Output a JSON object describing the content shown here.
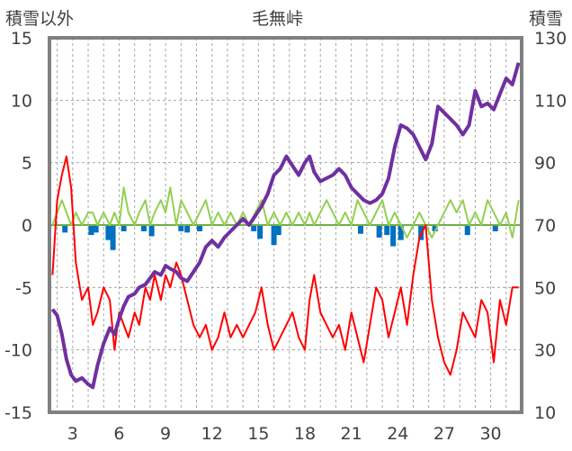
{
  "chart_data": {
    "type": "line",
    "title": "毛無峠",
    "ylabel_left": "積雪以外",
    "ylabel_right": "積雪",
    "left_axis": {
      "ylim": [
        -15,
        15
      ],
      "ticks": [
        15,
        10,
        5,
        0,
        -5,
        -10,
        -15
      ]
    },
    "right_axis": {
      "ylim": [
        10,
        130
      ],
      "ticks": [
        130,
        110,
        90,
        70,
        50,
        30,
        10
      ]
    },
    "x_axis": {
      "xlim": [
        1.5,
        32
      ],
      "ticks": [
        3,
        6,
        9,
        12,
        15,
        18,
        21,
        24,
        27,
        30
      ]
    },
    "grid": true,
    "series": [
      {
        "axis": "right",
        "kind": "line",
        "color": "#7030a0",
        "x": [
          1.7,
          2.0,
          2.3,
          2.6,
          2.9,
          3.2,
          3.6,
          4.0,
          4.3,
          4.6,
          5.0,
          5.4,
          5.7,
          6.0,
          6.3,
          6.6,
          7.0,
          7.3,
          7.7,
          8.0,
          8.3,
          8.7,
          9.0,
          9.3,
          9.7,
          10.0,
          10.4,
          10.8,
          11.2,
          11.6,
          12.0,
          12.4,
          12.8,
          13.2,
          13.6,
          14.0,
          14.4,
          14.8,
          15.2,
          15.6,
          16.0,
          16.4,
          16.8,
          17.2,
          17.6,
          18.0,
          18.3,
          18.6,
          19.0,
          19.4,
          19.8,
          20.2,
          20.6,
          21.0,
          21.4,
          21.8,
          22.2,
          22.6,
          23.0,
          23.4,
          23.8,
          24.2,
          24.6,
          25.0,
          25.4,
          25.8,
          26.2,
          26.6,
          27.0,
          27.4,
          27.8,
          28.2,
          28.6,
          29.0,
          29.4,
          29.8,
          30.2,
          30.6,
          31.0,
          31.4,
          31.8
        ],
        "y": [
          43,
          41,
          35,
          27,
          22,
          20,
          21,
          19,
          18,
          25,
          32,
          37,
          35,
          40,
          44,
          47,
          48,
          50,
          51,
          53,
          55,
          54,
          57,
          56,
          55,
          53,
          52,
          55,
          58,
          63,
          65,
          63,
          66,
          68,
          70,
          72,
          70,
          73,
          76,
          80,
          86,
          88,
          92,
          89,
          86,
          90,
          92,
          87,
          84,
          85,
          86,
          88,
          86,
          82,
          80,
          78,
          77,
          78,
          80,
          85,
          95,
          102,
          101,
          99,
          95,
          91,
          96,
          108,
          106,
          104,
          102,
          99,
          102,
          113,
          108,
          109,
          107,
          112,
          117,
          115,
          122
        ],
        "data_name": "series-snow-depth"
      },
      {
        "axis": "left",
        "kind": "line",
        "color": "#ff0000",
        "x": [
          1.7,
          2.0,
          2.3,
          2.6,
          2.9,
          3.2,
          3.6,
          4.0,
          4.3,
          4.6,
          5.0,
          5.4,
          5.7,
          6.0,
          6.3,
          6.6,
          7.0,
          7.3,
          7.7,
          8.0,
          8.3,
          8.7,
          9.0,
          9.3,
          9.7,
          10.0,
          10.4,
          10.8,
          11.2,
          11.6,
          12.0,
          12.4,
          12.8,
          13.2,
          13.6,
          14.0,
          14.4,
          14.8,
          15.2,
          15.6,
          16.0,
          16.4,
          16.8,
          17.2,
          17.6,
          18.0,
          18.3,
          18.6,
          19.0,
          19.4,
          19.8,
          20.2,
          20.6,
          21.0,
          21.4,
          21.8,
          22.2,
          22.6,
          23.0,
          23.4,
          23.8,
          24.2,
          24.6,
          25.0,
          25.4,
          25.8,
          26.2,
          26.6,
          27.0,
          27.4,
          27.8,
          28.2,
          28.6,
          29.0,
          29.4,
          29.8,
          30.2,
          30.6,
          31.0,
          31.4,
          31.8
        ],
        "y": [
          -4,
          2,
          4,
          5.5,
          3,
          -3,
          -6,
          -5,
          -8,
          -7,
          -5,
          -6,
          -10,
          -7,
          -8,
          -9,
          -7,
          -8,
          -5,
          -6,
          -4,
          -6,
          -4,
          -5,
          -3,
          -4,
          -6,
          -8,
          -9,
          -8,
          -10,
          -9,
          -7,
          -9,
          -8,
          -9,
          -8,
          -7,
          -5,
          -8,
          -10,
          -9,
          -8,
          -7,
          -9,
          -10,
          -6,
          -4,
          -7,
          -8,
          -9,
          -8,
          -10,
          -7,
          -9,
          -11,
          -8,
          -5,
          -6,
          -9,
          -7,
          -5,
          -8,
          -4,
          -1,
          0,
          -6,
          -9,
          -11,
          -12,
          -10,
          -7,
          -8,
          -9,
          -6,
          -7,
          -11,
          -6,
          -8,
          -5,
          -5
        ],
        "data_name": "series-temperature"
      },
      {
        "axis": "left",
        "kind": "line",
        "color": "#92d050",
        "x": [
          1.7,
          2.0,
          2.3,
          2.6,
          2.9,
          3.2,
          3.6,
          4.0,
          4.3,
          4.6,
          5.0,
          5.4,
          5.7,
          6.0,
          6.3,
          6.6,
          7.0,
          7.3,
          7.7,
          8.0,
          8.3,
          8.7,
          9.0,
          9.3,
          9.7,
          10.0,
          10.4,
          10.8,
          11.2,
          11.6,
          12.0,
          12.4,
          12.8,
          13.2,
          13.6,
          14.0,
          14.4,
          14.8,
          15.2,
          15.6,
          16.0,
          16.4,
          16.8,
          17.2,
          17.6,
          18.0,
          18.3,
          18.6,
          19.0,
          19.4,
          19.8,
          20.2,
          20.6,
          21.0,
          21.4,
          21.8,
          22.2,
          22.6,
          23.0,
          23.4,
          23.8,
          24.2,
          24.6,
          25.0,
          25.4,
          25.8,
          26.2,
          26.6,
          27.0,
          27.4,
          27.8,
          28.2,
          28.6,
          29.0,
          29.4,
          29.8,
          30.2,
          30.6,
          31.0,
          31.4,
          31.8
        ],
        "y": [
          0,
          1,
          2,
          1,
          0,
          1,
          0,
          1,
          1,
          0,
          1,
          0,
          1,
          0,
          3,
          1,
          0,
          1,
          2,
          0,
          1,
          2,
          1,
          3,
          0,
          2,
          1,
          0,
          1,
          2,
          0,
          1,
          0,
          1,
          0,
          1,
          0,
          1,
          2,
          0,
          1,
          0,
          1,
          0,
          1,
          0,
          1,
          0,
          1,
          2,
          1,
          0,
          1,
          0,
          2,
          1,
          0,
          1,
          2,
          0,
          1,
          0,
          -1,
          0,
          1,
          0,
          -1,
          0,
          1,
          2,
          1,
          2,
          0,
          1,
          0,
          2,
          1,
          0,
          1,
          -1,
          2
        ],
        "data_name": "series-wind"
      },
      {
        "axis": "left",
        "kind": "bar",
        "color": "#0070c0",
        "x": [
          2.5,
          4.2,
          4.5,
          5.3,
          5.6,
          6.3,
          7.6,
          8.1,
          10.0,
          10.4,
          11.2,
          14.7,
          15.1,
          16.0,
          16.3,
          21.6,
          22.8,
          23.3,
          23.7,
          24.2,
          25.5,
          26.4,
          28.5,
          30.3
        ],
        "y": [
          -0.6,
          -0.8,
          -0.6,
          -1.2,
          -2.0,
          -0.5,
          -0.5,
          -0.9,
          -0.5,
          -0.6,
          -0.5,
          -0.5,
          -1.1,
          -1.6,
          -0.8,
          -0.7,
          -1.0,
          -0.8,
          -1.7,
          -1.2,
          -1.2,
          -0.5,
          -0.8,
          -0.5
        ],
        "data_name": "series-precipitation"
      }
    ]
  }
}
